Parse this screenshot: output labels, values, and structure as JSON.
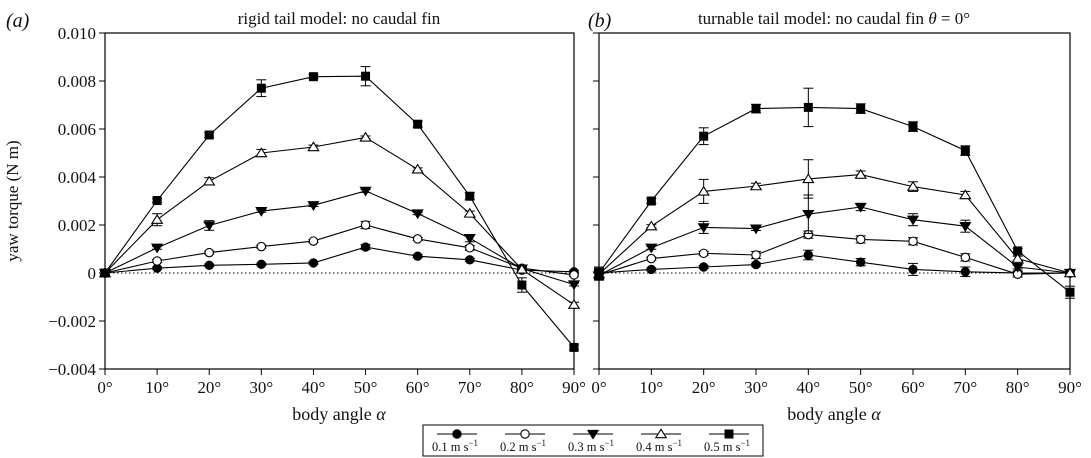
{
  "shared": {
    "ylabel": "yaw torque (N m)",
    "xlabel": "body angle",
    "xlabel_symbol": "α"
  },
  "legend": [
    {
      "label": "0.1 m s",
      "sup": "−1",
      "marker": "filled-circle"
    },
    {
      "label": "0.2 m s",
      "sup": "−1",
      "marker": "open-circle"
    },
    {
      "label": "0.3 m s",
      "sup": "−1",
      "marker": "filled-down-triangle"
    },
    {
      "label": "0.4 m s",
      "sup": "−1",
      "marker": "open-up-triangle"
    },
    {
      "label": "0.5 m s",
      "sup": "−1",
      "marker": "filled-square"
    }
  ],
  "chart_data": [
    {
      "type": "line",
      "panel_label": "(a)",
      "title": "rigid tail model: no caudal fin",
      "xlabel": "body angle α",
      "ylabel": "yaw torque (N m)",
      "x": [
        0,
        10,
        20,
        30,
        40,
        50,
        60,
        70,
        80,
        90
      ],
      "x_tick_labels": [
        "0°",
        "10°",
        "20°",
        "30°",
        "40°",
        "50°",
        "60°",
        "70°",
        "80°",
        "90°"
      ],
      "y_ticks": [
        -0.004,
        -0.002,
        0,
        0.002,
        0.004,
        0.006,
        0.008,
        0.01
      ],
      "y_tick_labels": [
        "−0.004",
        "−0.002",
        "0",
        "0.002",
        "0.004",
        "0.006",
        "0.008",
        "0.010"
      ],
      "xlim": [
        0,
        90
      ],
      "ylim": [
        -0.004,
        0.01
      ],
      "zero_line": "dotted",
      "series": [
        {
          "name": "0.1 m s−1",
          "marker": "filled-circle",
          "values": [
            0.0,
            0.0002,
            0.00032,
            0.00036,
            0.00042,
            0.00108,
            0.0007,
            0.00055,
            0.00012,
            5e-05
          ],
          "errors": [
            8e-05,
            5e-05,
            5e-05,
            5e-05,
            5e-05,
            0.0001,
            6e-05,
            6e-05,
            5e-05,
            5e-05
          ]
        },
        {
          "name": "0.2 m s−1",
          "marker": "open-circle",
          "values": [
            0.0,
            0.0005,
            0.00085,
            0.0011,
            0.00133,
            0.002,
            0.00142,
            0.00105,
            0.0002,
            -8e-05
          ],
          "errors": [
            8e-05,
            6e-05,
            6e-05,
            6e-05,
            6e-05,
            0.00015,
            6e-05,
            0.0001,
            8e-05,
            6e-05
          ]
        },
        {
          "name": "0.3 m s−1",
          "marker": "filled-down-triangle",
          "values": [
            0.0,
            0.00105,
            0.00198,
            0.00258,
            0.00282,
            0.00342,
            0.00248,
            0.00145,
            0.00018,
            -0.00048
          ],
          "errors": [
            8e-05,
            6e-05,
            0.0002,
            5e-05,
            5e-05,
            6e-05,
            5e-05,
            0.00015,
            8e-05,
            6e-05
          ]
        },
        {
          "name": "0.4 m s−1",
          "marker": "open-up-triangle",
          "values": [
            0.0,
            0.00222,
            0.00382,
            0.005,
            0.00525,
            0.00565,
            0.00432,
            0.00248,
            0.00015,
            -0.00132
          ],
          "errors": [
            8e-05,
            0.00025,
            0.00015,
            0.00015,
            8e-05,
            6e-05,
            6e-05,
            0.0001,
            8e-05,
            0.0001
          ]
        },
        {
          "name": "0.5 m s−1",
          "marker": "filled-square",
          "values": [
            0.0,
            0.00302,
            0.00575,
            0.0077,
            0.00818,
            0.0082,
            0.0062,
            0.0032,
            -0.0005,
            -0.0031
          ],
          "errors": [
            8e-05,
            8e-05,
            0.0001,
            0.00035,
            8e-05,
            0.0004,
            0.00012,
            0.00015,
            0.0003,
            0.0001
          ]
        }
      ]
    },
    {
      "type": "line",
      "panel_label": "(b)",
      "title": "turnable tail model: no caudal fin θ = 0°",
      "title_parts": [
        "turnable tail model: no caudal fin ",
        "θ",
        " = 0°"
      ],
      "xlabel": "body angle α",
      "x": [
        0,
        10,
        20,
        30,
        40,
        50,
        60,
        70,
        80,
        90
      ],
      "x_tick_labels": [
        "0°",
        "10°",
        "20°",
        "30°",
        "40°",
        "50°",
        "60°",
        "70°",
        "80°",
        "90°"
      ],
      "xlim": [
        0,
        90
      ],
      "ylim": [
        -0.004,
        0.01
      ],
      "zero_line": "dotted",
      "series": [
        {
          "name": "0.1 m s−1",
          "marker": "filled-circle",
          "values": [
            0.0,
            0.00015,
            0.00025,
            0.00035,
            0.00075,
            0.00045,
            0.00015,
            5e-05,
            0.0,
            0.0
          ],
          "errors": [
            0.00025,
            6e-05,
            6e-05,
            6e-05,
            0.0002,
            0.00015,
            0.00025,
            0.0002,
            8e-05,
            8e-05
          ]
        },
        {
          "name": "0.2 m s−1",
          "marker": "open-circle",
          "values": [
            -8e-05,
            0.0006,
            0.00082,
            0.00075,
            0.0016,
            0.0014,
            0.00132,
            0.00065,
            -5e-05,
            0.0
          ],
          "errors": [
            0.0002,
            6e-05,
            8e-05,
            0.00015,
            0.00015,
            0.00015,
            0.00015,
            0.00015,
            0.00012,
            8e-05
          ]
        },
        {
          "name": "0.3 m s−1",
          "marker": "filled-down-triangle",
          "values": [
            -0.0001,
            0.00105,
            0.0019,
            0.00185,
            0.00245,
            0.00275,
            0.00222,
            0.00195,
            0.00025,
            0.0
          ],
          "errors": [
            0.0002,
            6e-05,
            0.00025,
            8e-05,
            0.0008,
            0.00015,
            0.00025,
            0.00025,
            8e-05,
            8e-05
          ]
        },
        {
          "name": "0.4 m s−1",
          "marker": "open-up-triangle",
          "values": [
            -5e-05,
            0.00195,
            0.0034,
            0.00362,
            0.00392,
            0.0041,
            0.0036,
            0.00325,
            0.0006,
            0.0
          ],
          "errors": [
            0.0002,
            6e-05,
            0.0005,
            0.00012,
            0.0008,
            0.00015,
            0.0002,
            0.00015,
            0.0001,
            8e-05
          ]
        },
        {
          "name": "0.5 m s−1",
          "marker": "filled-square",
          "values": [
            0.0,
            0.003,
            0.0057,
            0.00685,
            0.0069,
            0.00685,
            0.0061,
            0.0051,
            0.00092,
            -0.0008
          ],
          "errors": [
            0.0002,
            0.0001,
            0.00035,
            0.00018,
            0.0008,
            0.0002,
            0.0002,
            0.0002,
            0.0001,
            0.00025
          ]
        }
      ]
    }
  ]
}
